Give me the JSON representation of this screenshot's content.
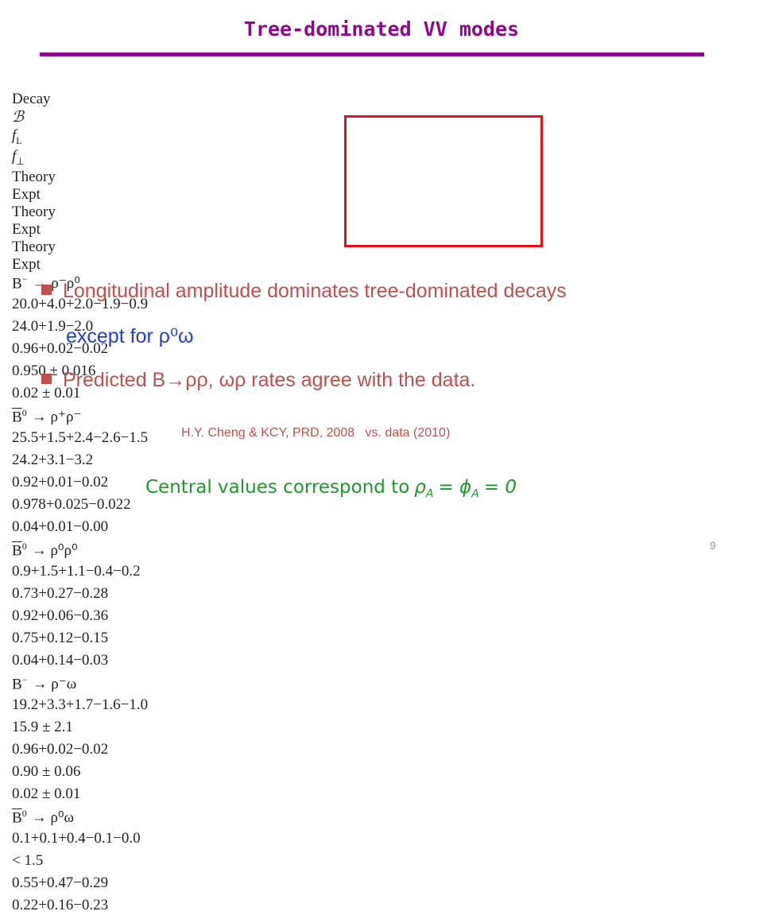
{
  "header": {
    "title": "Tree-dominated VV modes"
  },
  "table": {
    "decay_header": "Decay",
    "groups": [
      {
        "symbol": "ℬ"
      },
      {
        "symbol": "f",
        "sub": "L"
      },
      {
        "symbol": "f",
        "sub": "⊥"
      }
    ],
    "subheaders": [
      "Theory",
      "Expt",
      "Theory",
      "Expt",
      "Theory",
      "Expt"
    ],
    "rows": [
      {
        "decay": {
          "parent": "B",
          "sup": "−",
          "bar": false,
          "final": "→ ρ⁻ρ⁰"
        },
        "cells": [
          {
            "v": "20.0",
            "up": "+4.0+2.0",
            "down": "−1.9−0.9"
          },
          {
            "v": "24.0",
            "up": "+1.9",
            "down": "−2.0"
          },
          {
            "v": "0.96",
            "up": "+0.02",
            "down": "−0.02"
          },
          "0.950 ± 0.016",
          "0.02 ± 0.01",
          null
        ]
      },
      {
        "decay": {
          "parent": "B",
          "sup": "0",
          "bar": true,
          "final": "→ ρ⁺ρ⁻"
        },
        "cells": [
          {
            "v": "25.5",
            "up": "+1.5+2.4",
            "down": "−2.6−1.5"
          },
          {
            "v": "24.2",
            "up": "+3.1",
            "down": "−3.2"
          },
          {
            "v": "0.92",
            "up": "+0.01",
            "down": "−0.02"
          },
          {
            "v": "0.978",
            "up": "+0.025",
            "down": "−0.022"
          },
          {
            "v": "0.04",
            "up": "+0.01",
            "down": "−0.00"
          },
          null
        ]
      },
      {
        "decay": {
          "parent": "B",
          "sup": "0",
          "bar": true,
          "final": "→ ρ⁰ρ⁰"
        },
        "cells": [
          {
            "v": "0.9",
            "up": "+1.5+1.1",
            "down": "−0.4−0.2"
          },
          {
            "v": "0.73",
            "up": "+0.27",
            "down": "−0.28"
          },
          {
            "v": "0.92",
            "up": "+0.06",
            "down": "−0.36"
          },
          {
            "v": "0.75",
            "up": "+0.12",
            "down": "−0.15"
          },
          {
            "v": "0.04",
            "up": "+0.14",
            "down": "−0.03"
          },
          null
        ]
      },
      {
        "decay": {
          "parent": "B",
          "sup": "−",
          "bar": false,
          "final": "→ ρ⁻ω"
        },
        "cells": [
          {
            "v": "19.2",
            "up": "+3.3+1.7",
            "down": "−1.6−1.0"
          },
          "15.9 ± 2.1",
          {
            "v": "0.96",
            "up": "+0.02",
            "down": "−0.02"
          },
          "0.90 ± 0.06",
          "0.02 ± 0.01",
          null
        ]
      },
      {
        "decay": {
          "parent": "B",
          "sup": "0",
          "bar": true,
          "final": "→ ρ⁰ω"
        },
        "cells": [
          {
            "v": "0.1",
            "up": "+0.1+0.4",
            "down": "−0.1−0.0"
          },
          "< 1.5",
          {
            "v": "0.55",
            "up": "+0.47",
            "down": "−0.29"
          },
          null,
          {
            "v": "0.22",
            "up": "+0.16",
            "down": "−0.23"
          },
          null
        ]
      }
    ]
  },
  "bullets": [
    "Longitudinal amplitude dominates tree-dominated decays",
    "except for ρ⁰ω",
    "Predicted B→ρρ, ωρ  rates agree with the data."
  ],
  "citation": "H.Y. Cheng & KCY, PRD, 2008   vs. data (2010)",
  "note": {
    "text": "Central values correspond to",
    "math": [
      {
        "sym": "ρ",
        "sub": "A"
      },
      {
        "sym": "= ϕ",
        "sub": "A"
      },
      {
        "sym": "= 0"
      }
    ]
  },
  "page_number": "9"
}
